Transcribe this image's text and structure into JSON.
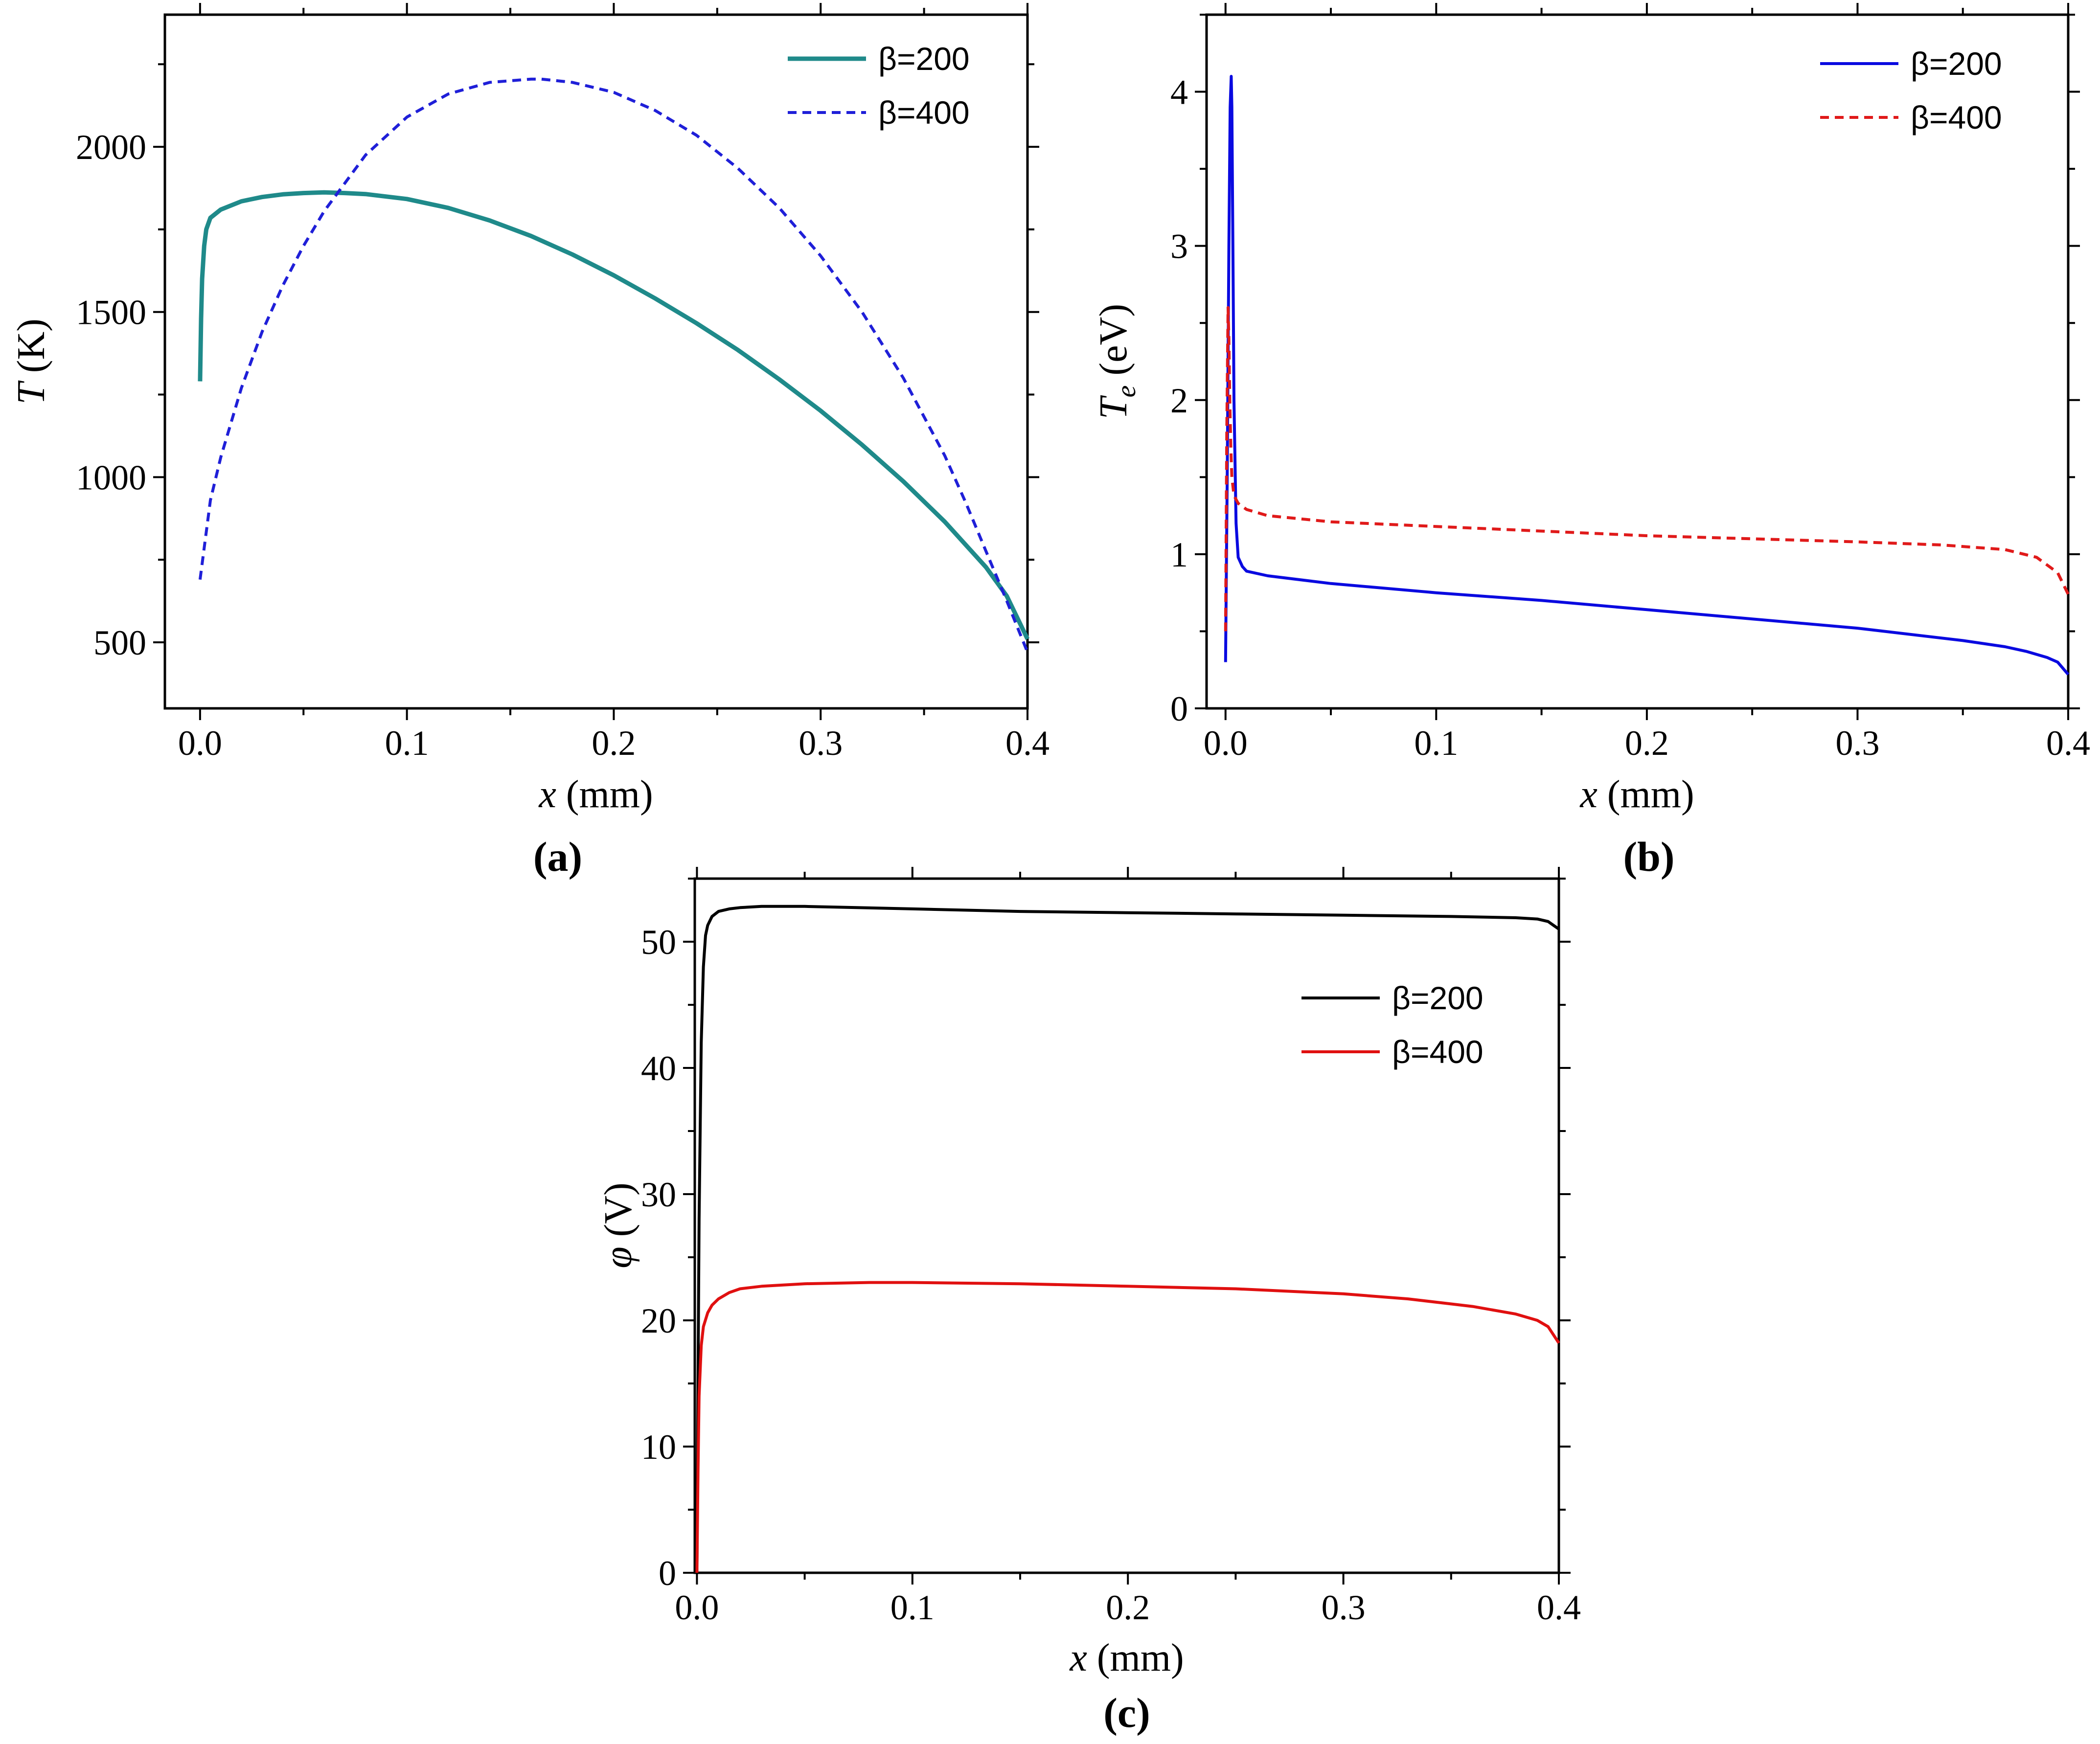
{
  "chart_data": [
    {
      "id": "a",
      "type": "line",
      "panel_label": "(a)",
      "xlabel_var": "x",
      "xlabel_unit": " (mm)",
      "ylabel_var": "T",
      "ylabel_unit": " (K)",
      "xlim": [
        -0.017,
        0.4
      ],
      "ylim": [
        300,
        2400
      ],
      "xticks": [
        0.0,
        0.1,
        0.2,
        0.3,
        0.4
      ],
      "xtick_labels": [
        "0.0",
        "0.1",
        "0.2",
        "0.3",
        "0.4"
      ],
      "yticks": [
        500,
        1000,
        1500,
        2000
      ],
      "ytick_labels": [
        "500",
        "1000",
        "1500",
        "2000"
      ],
      "legend_position": "top-right",
      "series": [
        {
          "name": "β=200",
          "color": "#1f8a8a",
          "style": "solid",
          "x": [
            0.0,
            0.0005,
            0.001,
            0.002,
            0.003,
            0.005,
            0.01,
            0.02,
            0.03,
            0.04,
            0.05,
            0.06,
            0.07,
            0.08,
            0.1,
            0.12,
            0.14,
            0.16,
            0.18,
            0.2,
            0.22,
            0.24,
            0.26,
            0.28,
            0.3,
            0.32,
            0.34,
            0.36,
            0.38,
            0.39,
            0.4
          ],
          "y": [
            1290,
            1480,
            1600,
            1700,
            1750,
            1785,
            1810,
            1835,
            1848,
            1856,
            1860,
            1862,
            1860,
            1857,
            1842,
            1815,
            1777,
            1730,
            1674,
            1611,
            1541,
            1466,
            1385,
            1296,
            1201,
            1098,
            987,
            865,
            727,
            640,
            510
          ]
        },
        {
          "name": "β=400",
          "color": "#1f1fd8",
          "style": "dashed",
          "x": [
            0.0,
            0.005,
            0.01,
            0.02,
            0.03,
            0.04,
            0.05,
            0.06,
            0.08,
            0.1,
            0.12,
            0.14,
            0.16,
            0.165,
            0.18,
            0.2,
            0.22,
            0.24,
            0.26,
            0.28,
            0.3,
            0.32,
            0.34,
            0.36,
            0.37,
            0.38,
            0.39,
            0.4
          ],
          "y": [
            690,
            930,
            1060,
            1270,
            1440,
            1580,
            1700,
            1805,
            1975,
            2090,
            2160,
            2195,
            2205,
            2205,
            2195,
            2165,
            2110,
            2035,
            1935,
            1815,
            1670,
            1500,
            1300,
            1065,
            925,
            775,
            625,
            470
          ]
        }
      ]
    },
    {
      "id": "b",
      "type": "line",
      "panel_label": "(b)",
      "xlabel_var": "x",
      "xlabel_unit": " (mm)",
      "ylabel_var": "T",
      "ylabel_sub": "e",
      "ylabel_unit": " (eV)",
      "xlim": [
        -0.009,
        0.4
      ],
      "ylim": [
        0,
        4.5
      ],
      "xticks": [
        0.0,
        0.1,
        0.2,
        0.3,
        0.4
      ],
      "xtick_labels": [
        "0.0",
        "0.1",
        "0.2",
        "0.3",
        "0.4"
      ],
      "yticks": [
        0,
        1,
        2,
        3,
        4
      ],
      "ytick_labels": [
        "0",
        "1",
        "2",
        "3",
        "4"
      ],
      "legend_position": "top-right",
      "series": [
        {
          "name": "β=200",
          "color": "#0a0ae0",
          "style": "solid",
          "x": [
            0.0,
            0.0008,
            0.0016,
            0.0022,
            0.0027,
            0.003,
            0.0035,
            0.004,
            0.005,
            0.006,
            0.008,
            0.01,
            0.02,
            0.05,
            0.1,
            0.15,
            0.2,
            0.25,
            0.3,
            0.35,
            0.37,
            0.38,
            0.39,
            0.395,
            0.4
          ],
          "y": [
            0.3,
            1.5,
            3.0,
            3.9,
            4.1,
            3.9,
            3.0,
            2.0,
            1.2,
            0.98,
            0.92,
            0.89,
            0.86,
            0.81,
            0.75,
            0.7,
            0.64,
            0.58,
            0.52,
            0.44,
            0.4,
            0.37,
            0.33,
            0.3,
            0.22
          ]
        },
        {
          "name": "β=400",
          "color": "#e01a1a",
          "style": "dashed",
          "x": [
            0.0,
            0.0006,
            0.0012,
            0.0016,
            0.002,
            0.0025,
            0.003,
            0.004,
            0.006,
            0.01,
            0.02,
            0.05,
            0.1,
            0.15,
            0.2,
            0.25,
            0.3,
            0.34,
            0.37,
            0.385,
            0.395,
            0.4
          ],
          "y": [
            0.5,
            1.8,
            2.6,
            2.4,
            2.0,
            1.7,
            1.5,
            1.38,
            1.33,
            1.29,
            1.25,
            1.21,
            1.18,
            1.15,
            1.12,
            1.1,
            1.08,
            1.06,
            1.03,
            0.98,
            0.88,
            0.74
          ]
        }
      ]
    },
    {
      "id": "c",
      "type": "line",
      "panel_label": "(c)",
      "xlabel_var": "x",
      "xlabel_unit": " (mm)",
      "ylabel_var": "φ",
      "ylabel_unit": " (V)",
      "xlim": [
        -0.001,
        0.4
      ],
      "ylim": [
        0,
        55
      ],
      "xticks": [
        0.0,
        0.1,
        0.2,
        0.3,
        0.4
      ],
      "xtick_labels": [
        "0.0",
        "0.1",
        "0.2",
        "0.3",
        "0.4"
      ],
      "yticks": [
        0,
        10,
        20,
        30,
        40,
        50
      ],
      "ytick_labels": [
        "0",
        "10",
        "20",
        "30",
        "40",
        "50"
      ],
      "legend_position": "center-right",
      "series": [
        {
          "name": "β=200",
          "color": "#000000",
          "style": "solid",
          "x": [
            0.0,
            0.0005,
            0.001,
            0.002,
            0.003,
            0.004,
            0.005,
            0.007,
            0.01,
            0.015,
            0.02,
            0.03,
            0.05,
            0.1,
            0.15,
            0.2,
            0.25,
            0.3,
            0.35,
            0.38,
            0.39,
            0.395,
            0.4
          ],
          "y": [
            0,
            15,
            28,
            42,
            48,
            50.5,
            51.3,
            52.0,
            52.4,
            52.6,
            52.7,
            52.8,
            52.8,
            52.6,
            52.4,
            52.3,
            52.2,
            52.1,
            52.0,
            51.9,
            51.8,
            51.6,
            51.0
          ]
        },
        {
          "name": "β=400",
          "color": "#e01010",
          "style": "solid",
          "x": [
            0.0,
            0.0005,
            0.001,
            0.002,
            0.003,
            0.005,
            0.007,
            0.01,
            0.015,
            0.02,
            0.03,
            0.05,
            0.08,
            0.1,
            0.15,
            0.2,
            0.25,
            0.3,
            0.33,
            0.36,
            0.38,
            0.39,
            0.395,
            0.4
          ],
          "y": [
            0,
            8,
            14,
            18,
            19.5,
            20.6,
            21.2,
            21.7,
            22.2,
            22.5,
            22.7,
            22.9,
            23.0,
            23.0,
            22.9,
            22.7,
            22.5,
            22.1,
            21.7,
            21.1,
            20.5,
            20.0,
            19.5,
            18.2
          ]
        }
      ]
    }
  ]
}
